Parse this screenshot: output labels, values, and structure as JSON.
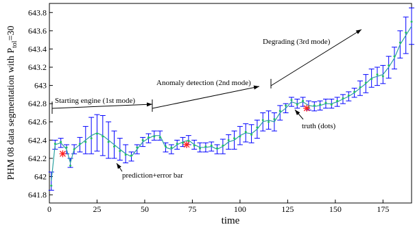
{
  "chart_data": {
    "type": "errorbar",
    "ylabel": [
      "PHM 08 data segmentation with P",
      "tol",
      "=30"
    ],
    "xlabel": "time",
    "xlim": [
      0,
      190
    ],
    "xticks": [
      0,
      25,
      50,
      75,
      100,
      125,
      150,
      175
    ],
    "ylim": [
      641.71,
      643.9
    ],
    "yticks": [
      641.8,
      642,
      642.2,
      642.4,
      642.6,
      642.8,
      643,
      643.2,
      643.4,
      643.6,
      643.8
    ],
    "x": [
      1,
      3,
      6,
      9,
      11,
      13,
      16,
      19,
      22,
      25,
      28,
      31,
      34,
      37,
      40,
      43,
      46,
      49,
      52,
      55,
      58,
      61,
      64,
      67,
      70,
      73,
      76,
      79,
      82,
      85,
      88,
      91,
      94,
      97,
      100,
      103,
      106,
      109,
      112,
      115,
      118,
      121,
      124,
      127,
      130,
      133,
      136,
      139,
      142,
      145,
      148,
      151,
      154,
      157,
      160,
      163,
      166,
      169,
      172,
      175,
      178,
      181,
      184,
      187,
      190
    ],
    "series": [
      {
        "name": "prediction",
        "color": "#0000ff",
        "line_color": "#2aa0a0",
        "values": [
          641.95,
          642.35,
          642.37,
          642.3,
          642.15,
          642.3,
          642.35,
          642.4,
          642.45,
          642.48,
          642.45,
          642.4,
          642.35,
          642.3,
          642.25,
          642.22,
          642.3,
          642.38,
          642.42,
          642.45,
          642.45,
          642.32,
          642.3,
          642.35,
          642.38,
          642.4,
          642.35,
          642.32,
          642.32,
          642.33,
          642.3,
          642.33,
          642.38,
          642.4,
          642.45,
          642.48,
          642.47,
          642.52,
          642.6,
          642.62,
          642.6,
          642.7,
          642.75,
          642.82,
          642.8,
          642.82,
          642.78,
          642.77,
          642.78,
          642.8,
          642.8,
          642.82,
          642.85,
          642.88,
          642.92,
          642.97,
          643.02,
          643.08,
          643.1,
          643.12,
          643.2,
          643.3,
          643.45,
          643.55,
          643.65
        ],
        "errors": [
          0.1,
          0.05,
          0.05,
          0.05,
          0.05,
          0.05,
          0.08,
          0.15,
          0.2,
          0.2,
          0.22,
          0.2,
          0.15,
          0.12,
          0.1,
          0.05,
          0.05,
          0.05,
          0.05,
          0.05,
          0.05,
          0.05,
          0.05,
          0.05,
          0.05,
          0.05,
          0.05,
          0.05,
          0.05,
          0.05,
          0.05,
          0.08,
          0.08,
          0.1,
          0.1,
          0.1,
          0.1,
          0.1,
          0.1,
          0.1,
          0.1,
          0.08,
          0.05,
          0.05,
          0.05,
          0.05,
          0.05,
          0.05,
          0.05,
          0.05,
          0.05,
          0.05,
          0.05,
          0.05,
          0.05,
          0.08,
          0.1,
          0.1,
          0.1,
          0.1,
          0.12,
          0.12,
          0.15,
          0.2,
          0.2
        ]
      },
      {
        "name": "truth",
        "color": "#20c060",
        "values": [
          641.9,
          642.36,
          642.38,
          642.32,
          642.12,
          642.3,
          642.36,
          642.38,
          642.42,
          642.47,
          642.44,
          642.38,
          642.33,
          642.28,
          642.24,
          642.23,
          642.32,
          642.4,
          642.43,
          642.44,
          642.43,
          642.33,
          642.32,
          642.36,
          642.37,
          642.39,
          642.34,
          642.31,
          642.33,
          642.34,
          642.31,
          642.34,
          642.4,
          642.42,
          642.44,
          642.49,
          642.46,
          642.54,
          642.62,
          642.6,
          642.63,
          642.72,
          642.78,
          642.84,
          642.79,
          642.83,
          642.76,
          642.78,
          642.79,
          642.81,
          642.79,
          642.83,
          642.86,
          642.89,
          642.93,
          642.98,
          643.03,
          643.07,
          643.12,
          643.1,
          643.22,
          643.32,
          643.47,
          643.58,
          643.7
        ]
      }
    ],
    "anomalies": {
      "color": "#ff2020",
      "x": [
        7,
        72,
        135
      ],
      "values": [
        642.25,
        642.35,
        642.75
      ]
    },
    "annotations": [
      "Starting engine (1st mode)",
      "Anomaly detection (2nd mode)",
      "Degrading (3rd mode)",
      "truth (dots)",
      "prediction+error bar"
    ]
  }
}
